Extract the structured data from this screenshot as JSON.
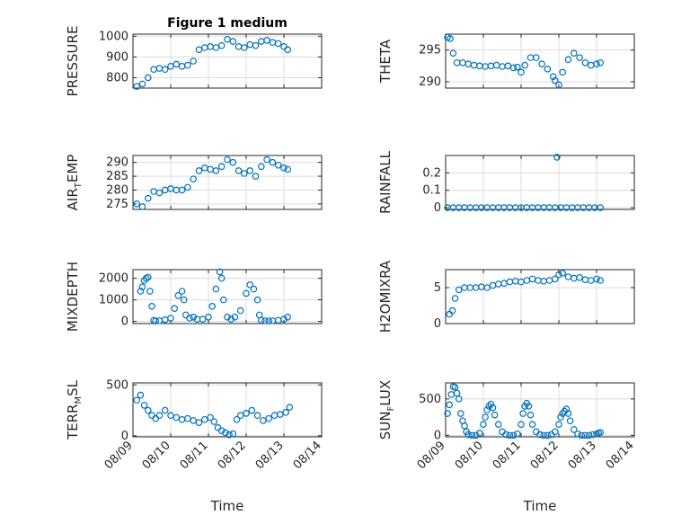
{
  "chart_data": [
    {
      "type": "scatter",
      "title": "Figure 1 medium",
      "ylabel": "PRESSURE",
      "xlabel": "",
      "xlim": [
        "08/09",
        "08/14"
      ],
      "ylim": [
        750,
        1010
      ],
      "yticks": [
        "800",
        "900",
        "1000"
      ],
      "xticks": [
        "08/09",
        "08/10",
        "08/11",
        "08/12",
        "08/13",
        "08/14"
      ],
      "grid": true,
      "x": [
        0.1,
        0.25,
        0.4,
        0.55,
        0.7,
        0.85,
        1.0,
        1.15,
        1.3,
        1.45,
        1.6,
        1.75,
        1.9,
        2.05,
        2.2,
        2.35,
        2.5,
        2.65,
        2.8,
        2.95,
        3.1,
        3.25,
        3.4,
        3.55,
        3.7,
        3.85,
        4.0,
        4.1
      ],
      "y": [
        758,
        770,
        800,
        840,
        845,
        840,
        855,
        865,
        855,
        860,
        880,
        935,
        945,
        950,
        945,
        955,
        985,
        975,
        950,
        945,
        960,
        955,
        975,
        980,
        970,
        965,
        950,
        935
      ]
    },
    {
      "type": "scatter",
      "title": "",
      "ylabel": "THETA",
      "xlabel": "",
      "xlim": [
        "08/09",
        "08/14"
      ],
      "ylim": [
        289,
        297.5
      ],
      "yticks": [
        "290",
        "295"
      ],
      "xticks": [
        "08/09",
        "08/10",
        "08/11",
        "08/12",
        "08/13",
        "08/14"
      ],
      "grid": true,
      "x": [
        0.05,
        0.12,
        0.2,
        0.3,
        0.45,
        0.6,
        0.75,
        0.9,
        1.05,
        1.2,
        1.35,
        1.5,
        1.65,
        1.8,
        1.9,
        2.0,
        2.1,
        2.25,
        2.4,
        2.55,
        2.7,
        2.85,
        2.9,
        3.0,
        3.1,
        3.25,
        3.4,
        3.55,
        3.7,
        3.85,
        4.0,
        4.1
      ],
      "y": [
        297,
        296.8,
        294.5,
        293,
        293,
        292.8,
        292.6,
        292.5,
        292.4,
        292.5,
        292.6,
        292.4,
        292.5,
        292.2,
        292.3,
        291.5,
        292.6,
        293.8,
        293.8,
        292.8,
        292,
        290.8,
        290.2,
        289.5,
        291.5,
        293.5,
        294.5,
        293.8,
        293,
        292.6,
        292.8,
        293
      ]
    },
    {
      "type": "scatter",
      "title": "",
      "ylabel": "AIR_TEMP",
      "xlabel": "",
      "xlim": [
        "08/09",
        "08/14"
      ],
      "ylim": [
        273,
        292.5
      ],
      "yticks": [
        "275",
        "280",
        "285",
        "290"
      ],
      "xticks": [
        "08/09",
        "08/10",
        "08/11",
        "08/12",
        "08/13",
        "08/14"
      ],
      "grid": true,
      "x": [
        0.1,
        0.25,
        0.4,
        0.55,
        0.7,
        0.85,
        1.0,
        1.15,
        1.3,
        1.45,
        1.6,
        1.75,
        1.9,
        2.05,
        2.2,
        2.35,
        2.5,
        2.65,
        2.8,
        2.95,
        3.1,
        3.25,
        3.4,
        3.55,
        3.7,
        3.85,
        4.0,
        4.1
      ],
      "y": [
        275,
        274,
        277,
        279.5,
        279,
        280,
        280.5,
        280,
        280,
        281,
        284,
        287,
        288,
        287.5,
        287,
        288.5,
        291,
        290,
        287,
        286,
        287,
        285,
        288.5,
        291,
        290,
        289,
        288,
        287.5
      ]
    },
    {
      "type": "scatter",
      "title": "",
      "ylabel": "RAINFALL",
      "xlabel": "",
      "xlim": [
        "08/09",
        "08/14"
      ],
      "ylim": [
        -0.01,
        0.3
      ],
      "yticks": [
        "0",
        "0.1",
        "0.2"
      ],
      "xticks": [
        "08/09",
        "08/10",
        "08/11",
        "08/12",
        "08/13",
        "08/14"
      ],
      "grid": true,
      "x": [
        0.05,
        0.2,
        0.35,
        0.5,
        0.65,
        0.8,
        0.95,
        1.1,
        1.25,
        1.4,
        1.55,
        1.7,
        1.85,
        2.0,
        2.15,
        2.3,
        2.45,
        2.6,
        2.75,
        2.9,
        3.05,
        3.2,
        3.35,
        3.5,
        3.65,
        3.8,
        3.95,
        4.1,
        2.95
      ],
      "y": [
        0,
        0,
        0,
        0,
        0,
        0,
        0,
        0,
        0,
        0,
        0,
        0,
        0,
        0,
        0,
        0,
        0,
        0,
        0,
        0,
        0,
        0,
        0,
        0,
        0,
        0,
        0,
        0,
        0.29
      ]
    },
    {
      "type": "scatter",
      "title": "",
      "ylabel": "MIXDEPTH",
      "xlabel": "",
      "xlim": [
        "08/09",
        "08/14"
      ],
      "ylim": [
        -100,
        2400
      ],
      "yticks": [
        "0",
        "1000",
        "2000"
      ],
      "xticks": [
        "08/09",
        "08/10",
        "08/11",
        "08/12",
        "08/13",
        "08/14"
      ],
      "grid": true,
      "x": [
        0.2,
        0.25,
        0.3,
        0.35,
        0.4,
        0.45,
        0.5,
        0.55,
        0.6,
        0.7,
        0.85,
        1.0,
        1.1,
        1.2,
        1.3,
        1.35,
        1.4,
        1.5,
        1.6,
        1.7,
        1.85,
        2.0,
        2.1,
        2.2,
        2.3,
        2.35,
        2.4,
        2.5,
        2.6,
        2.7,
        2.85,
        3.0,
        3.1,
        3.2,
        3.3,
        3.35,
        3.4,
        3.5,
        3.6,
        3.7,
        3.85,
        4.0,
        4.1
      ],
      "y": [
        1400,
        1600,
        1900,
        2000,
        2050,
        1400,
        700,
        50,
        20,
        30,
        80,
        150,
        600,
        1200,
        1400,
        1000,
        300,
        150,
        200,
        100,
        100,
        200,
        700,
        1500,
        2300,
        2000,
        1000,
        200,
        100,
        200,
        500,
        1300,
        1700,
        1500,
        1000,
        300,
        50,
        30,
        20,
        30,
        50,
        100,
        200
      ]
    },
    {
      "type": "scatter",
      "title": "",
      "ylabel": "H2OMIXRA",
      "xlabel": "",
      "xlim": [
        "08/09",
        "08/14"
      ],
      "ylim": [
        0,
        7.5
      ],
      "yticks": [
        "0",
        "5"
      ],
      "xticks": [
        "08/09",
        "08/10",
        "08/11",
        "08/12",
        "08/13",
        "08/14"
      ],
      "grid": true,
      "x": [
        0.1,
        0.18,
        0.25,
        0.35,
        0.5,
        0.65,
        0.8,
        0.95,
        1.1,
        1.25,
        1.4,
        1.55,
        1.7,
        1.85,
        2.0,
        2.15,
        2.3,
        2.45,
        2.6,
        2.75,
        2.9,
        3.0,
        3.1,
        3.25,
        3.4,
        3.55,
        3.7,
        3.85,
        4.0,
        4.1
      ],
      "y": [
        1.3,
        1.8,
        3.5,
        4.7,
        5,
        5,
        5,
        5.1,
        5,
        5.3,
        5.5,
        5.6,
        5.8,
        5.9,
        5.8,
        6,
        6.2,
        6,
        5.9,
        6,
        6.2,
        6.8,
        7,
        6.5,
        6.3,
        6.4,
        6.1,
        6,
        6.2,
        6
      ]
    },
    {
      "type": "scatter",
      "title": "",
      "ylabel": "TERR_MSL",
      "xlabel": "Time",
      "xlim": [
        "08/09",
        "08/14"
      ],
      "ylim": [
        -10,
        520
      ],
      "yticks": [
        "0",
        "500"
      ],
      "xticks": [
        "08/09",
        "08/10",
        "08/11",
        "08/12",
        "08/13",
        "08/14"
      ],
      "grid": true,
      "x": [
        0.1,
        0.2,
        0.3,
        0.4,
        0.5,
        0.6,
        0.7,
        0.85,
        1.0,
        1.15,
        1.3,
        1.45,
        1.6,
        1.75,
        1.9,
        2.05,
        2.15,
        2.25,
        2.35,
        2.45,
        2.55,
        2.65,
        2.75,
        2.85,
        3.0,
        3.15,
        3.3,
        3.45,
        3.6,
        3.75,
        3.9,
        4.05,
        4.15
      ],
      "y": [
        350,
        400,
        300,
        250,
        200,
        170,
        200,
        250,
        200,
        180,
        160,
        170,
        150,
        130,
        160,
        180,
        140,
        80,
        50,
        30,
        10,
        20,
        160,
        200,
        220,
        250,
        200,
        150,
        170,
        200,
        210,
        230,
        280
      ]
    },
    {
      "type": "scatter",
      "title": "",
      "ylabel": "SUN_FLUX",
      "xlabel": "Time",
      "xlim": [
        "08/09",
        "08/14"
      ],
      "ylim": [
        -20,
        720
      ],
      "yticks": [
        "0",
        "500"
      ],
      "xticks": [
        "08/09",
        "08/10",
        "08/11",
        "08/12",
        "08/13",
        "08/14"
      ],
      "grid": true,
      "x": [
        0.05,
        0.1,
        0.15,
        0.2,
        0.25,
        0.3,
        0.35,
        0.4,
        0.45,
        0.5,
        0.55,
        0.6,
        0.7,
        0.8,
        0.9,
        1.0,
        1.05,
        1.1,
        1.15,
        1.2,
        1.25,
        1.3,
        1.4,
        1.5,
        1.6,
        1.7,
        1.8,
        1.9,
        2.0,
        2.05,
        2.1,
        2.15,
        2.2,
        2.25,
        2.3,
        2.4,
        2.5,
        2.6,
        2.7,
        2.8,
        2.9,
        3.0,
        3.05,
        3.1,
        3.15,
        3.2,
        3.25,
        3.3,
        3.4,
        3.5,
        3.6,
        3.7,
        3.8,
        3.9,
        4.0,
        4.05,
        4.1
      ],
      "y": [
        300,
        420,
        560,
        670,
        660,
        580,
        500,
        300,
        200,
        130,
        50,
        10,
        0,
        0,
        30,
        150,
        250,
        350,
        400,
        430,
        380,
        280,
        150,
        50,
        10,
        0,
        0,
        20,
        150,
        300,
        400,
        440,
        400,
        280,
        150,
        50,
        10,
        0,
        0,
        10,
        50,
        150,
        250,
        300,
        330,
        360,
        300,
        200,
        80,
        20,
        0,
        0,
        0,
        10,
        20,
        30,
        40
      ]
    }
  ]
}
